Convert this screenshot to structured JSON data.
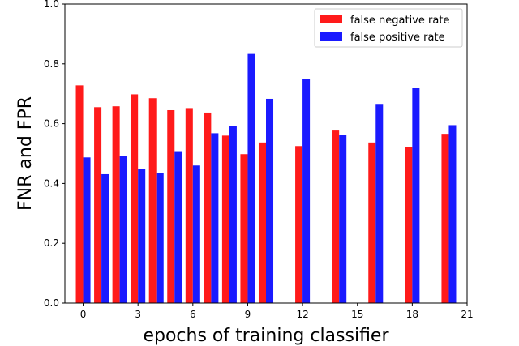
{
  "chart_data": {
    "type": "bar",
    "title": "",
    "xlabel": "epochs of training classifier",
    "ylabel": "FNR and FPR",
    "xlim": [
      -1,
      21
    ],
    "ylim": [
      0,
      1.0
    ],
    "xticks": [
      0,
      3,
      6,
      9,
      12,
      15,
      18,
      21
    ],
    "xtick_labels": [
      "0",
      "3",
      "6",
      "9",
      "12",
      "15",
      "18",
      "21"
    ],
    "yticks": [
      0,
      0.2,
      0.4,
      0.6,
      0.8,
      1.0
    ],
    "ytick_labels": [
      "0.0",
      "0.2",
      "0.4",
      "0.6",
      "0.8",
      "1.0"
    ],
    "legend_position": "top-right",
    "grid": false,
    "x": [
      0,
      1,
      2,
      3,
      4,
      5,
      6,
      7,
      8,
      9,
      10,
      12,
      14,
      16,
      18,
      20
    ],
    "series": [
      {
        "name": "false negative rate",
        "color": "#ff1a1a",
        "values": [
          0.728,
          0.655,
          0.658,
          0.698,
          0.685,
          0.645,
          0.652,
          0.637,
          0.56,
          0.498,
          0.537,
          0.525,
          0.577,
          0.537,
          0.523,
          0.566
        ]
      },
      {
        "name": "false positive rate",
        "color": "#1a1aff",
        "values": [
          0.487,
          0.431,
          0.493,
          0.448,
          0.435,
          0.508,
          0.46,
          0.568,
          0.593,
          0.833,
          0.683,
          0.748,
          0.562,
          0.666,
          0.72,
          0.595
        ]
      }
    ]
  }
}
